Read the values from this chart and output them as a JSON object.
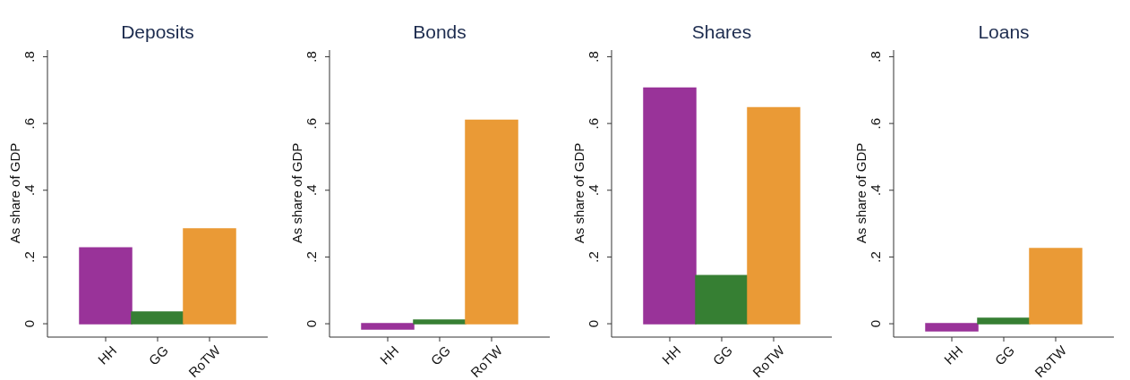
{
  "chart_data": [
    {
      "type": "bar",
      "title": "Deposits",
      "ylabel": "As share of GDP",
      "categories": [
        "HH",
        "GG",
        "RoTW"
      ],
      "values": [
        0.227,
        0.035,
        0.284
      ],
      "colors": [
        "#993399",
        "#367f33",
        "#ea9a36"
      ],
      "ylim": [
        -0.04,
        0.82
      ],
      "yticks": [
        {
          "value": 0,
          "label": "0"
        },
        {
          "value": 0.2,
          "label": ".2"
        },
        {
          "value": 0.4,
          "label": ".4"
        },
        {
          "value": 0.6,
          "label": ".6"
        },
        {
          "value": 0.8,
          "label": ".8"
        }
      ],
      "grid": false,
      "legend": false
    },
    {
      "type": "bar",
      "title": "Bonds",
      "ylabel": "As share of GDP",
      "categories": [
        "HH",
        "GG",
        "RoTW"
      ],
      "values": [
        -0.016,
        0.011,
        0.61
      ],
      "colors": [
        "#993399",
        "#367f33",
        "#ea9a36"
      ],
      "ylim": [
        -0.04,
        0.82
      ],
      "yticks": [
        {
          "value": 0,
          "label": "0"
        },
        {
          "value": 0.2,
          "label": ".2"
        },
        {
          "value": 0.4,
          "label": ".4"
        },
        {
          "value": 0.6,
          "label": ".6"
        },
        {
          "value": 0.8,
          "label": ".8"
        }
      ],
      "grid": false,
      "legend": false
    },
    {
      "type": "bar",
      "title": "Shares",
      "ylabel": "As share of GDP",
      "categories": [
        "HH",
        "GG",
        "RoTW"
      ],
      "values": [
        0.706,
        0.144,
        0.647
      ],
      "colors": [
        "#993399",
        "#367f33",
        "#ea9a36"
      ],
      "ylim": [
        -0.04,
        0.82
      ],
      "yticks": [
        {
          "value": 0,
          "label": "0"
        },
        {
          "value": 0.2,
          "label": ".2"
        },
        {
          "value": 0.4,
          "label": ".4"
        },
        {
          "value": 0.6,
          "label": ".6"
        },
        {
          "value": 0.8,
          "label": ".8"
        }
      ],
      "grid": false,
      "legend": false
    },
    {
      "type": "bar",
      "title": "Loans",
      "ylabel": "As share of GDP",
      "categories": [
        "HH",
        "GG",
        "RoTW"
      ],
      "values": [
        -0.021,
        0.016,
        0.225
      ],
      "colors": [
        "#993399",
        "#367f33",
        "#ea9a36"
      ],
      "ylim": [
        -0.04,
        0.82
      ],
      "yticks": [
        {
          "value": 0,
          "label": "0"
        },
        {
          "value": 0.2,
          "label": ".2"
        },
        {
          "value": 0.4,
          "label": ".4"
        },
        {
          "value": 0.6,
          "label": ".6"
        },
        {
          "value": 0.8,
          "label": ".8"
        }
      ],
      "grid": false,
      "legend": false
    }
  ]
}
